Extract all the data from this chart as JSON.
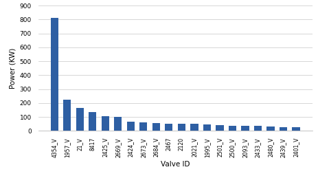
{
  "categories": [
    "4354_V",
    "1957_V",
    "21_V",
    "8417",
    "2425_V",
    "2669_V",
    "2424_V",
    "2673_V",
    "2684_V",
    "2467",
    "2120",
    "2021_V",
    "1995_V",
    "2501_V",
    "2500_V",
    "2093_V",
    "2433_V",
    "2480_V",
    "2439_V",
    "2401_V"
  ],
  "values": [
    810,
    225,
    165,
    137,
    107,
    100,
    68,
    60,
    55,
    53,
    52,
    50,
    47,
    42,
    38,
    38,
    35,
    32,
    27,
    27
  ],
  "bar_color": "#2E5FA3",
  "xlabel": "Valve ID",
  "ylabel": "Power (KW)",
  "ylim": [
    0,
    900
  ],
  "yticks": [
    0,
    100,
    200,
    300,
    400,
    500,
    600,
    700,
    800,
    900
  ],
  "background_color": "#ffffff",
  "grid_color": "#d0d0d0"
}
